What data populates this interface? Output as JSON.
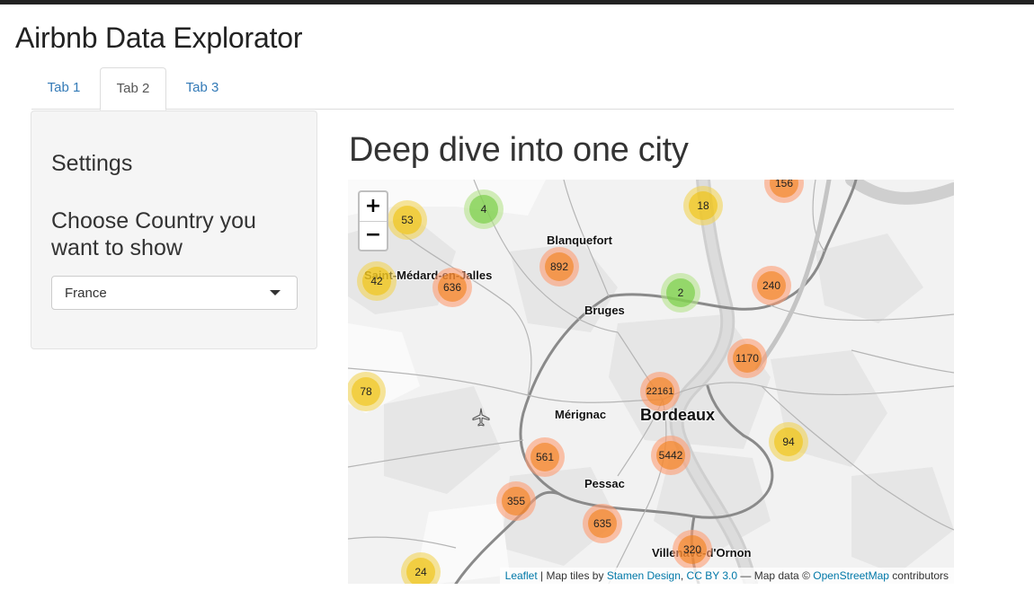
{
  "app": {
    "title": "Airbnb Data Explorator"
  },
  "tabs": [
    {
      "label": "Tab 1"
    },
    {
      "label": "Tab 2"
    },
    {
      "label": "Tab 3"
    }
  ],
  "active_tab": "Tab 2",
  "sidebar": {
    "settings_heading": "Settings",
    "choose_heading": "Choose Country you want to show",
    "country_select": {
      "value": "France"
    }
  },
  "main": {
    "title": "Deep dive into one city"
  },
  "map": {
    "zoom_in_label": "+",
    "zoom_out_label": "−",
    "places": {
      "blanquefort": "Blanquefort",
      "saint_medard": "Saint-Médard-en-Jalles",
      "bruges": "Bruges",
      "merignac": "Mérignac",
      "bordeaux": "Bordeaux",
      "pessac": "Pessac",
      "villenave": "Villenave-d'Ornon"
    },
    "clusters": {
      "c156": "156",
      "c53": "53",
      "c4": "4",
      "c18": "18",
      "c892": "892",
      "c42": "42",
      "c636": "636",
      "c2": "2",
      "c240": "240",
      "c1170": "1170",
      "c78": "78",
      "c22161": "22161",
      "c94": "94",
      "c5442": "5442",
      "c561": "561",
      "c355": "355",
      "c635": "635",
      "c320": "320",
      "c24": "24"
    },
    "attribution": {
      "leaflet": "Leaflet",
      "sep1": " | Map tiles by ",
      "stamen": "Stamen Design",
      "sep2": ", ",
      "license": "CC BY 3.0",
      "sep3": " — Map data © ",
      "osm": "OpenStreetMap",
      "suffix": " contributors"
    },
    "icons": {
      "airport": "airplane-icon"
    }
  }
}
